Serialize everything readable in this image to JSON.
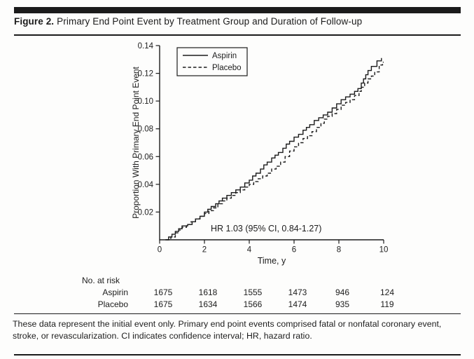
{
  "figure": {
    "label": "Figure 2.",
    "title": "Primary End Point Event by Treatment Group and Duration of Follow-up"
  },
  "footnote": "These data represent the initial event only. Primary end point events comprised fatal or nonfatal coronary event, stroke, or revascularization. CI indicates confidence interval; HR, hazard ratio.",
  "risk_table": {
    "header": "No. at risk",
    "rows": [
      {
        "label": "Aspirin",
        "values": [
          "1675",
          "1618",
          "1555",
          "1473",
          "946",
          "124"
        ]
      },
      {
        "label": "Placebo",
        "values": [
          "1675",
          "1634",
          "1566",
          "1474",
          "935",
          "119"
        ]
      }
    ]
  },
  "colors": {
    "line": "#1c1c1c",
    "text": "#1c1c1c",
    "rule": "#1b1b1b",
    "background": "#fdfdfc"
  },
  "chart_data": {
    "type": "line",
    "subtype": "step",
    "title": "",
    "xlabel": "Time, y",
    "ylabel": "Proportion With Primary End Point Event",
    "xlim": [
      0,
      10
    ],
    "ylim": [
      0,
      0.14
    ],
    "xticks": [
      0,
      2,
      4,
      6,
      8,
      10
    ],
    "yticks": [
      0.02,
      0.04,
      0.06,
      0.08,
      0.1,
      0.12,
      0.14
    ],
    "grid": false,
    "legend_position": "upper-left",
    "annotation": "HR 1.03 (95% CI, 0.84-1.27)",
    "series": [
      {
        "name": "Aspirin",
        "style": "solid",
        "points": [
          [
            0.25,
            0
          ],
          [
            0.4,
            0.002
          ],
          [
            0.55,
            0.004
          ],
          [
            0.7,
            0.006
          ],
          [
            0.85,
            0.008
          ],
          [
            1.0,
            0.01
          ],
          [
            1.25,
            0.011
          ],
          [
            1.45,
            0.013
          ],
          [
            1.6,
            0.015
          ],
          [
            1.8,
            0.017
          ],
          [
            2.0,
            0.02
          ],
          [
            2.15,
            0.022
          ],
          [
            2.3,
            0.024
          ],
          [
            2.5,
            0.026
          ],
          [
            2.65,
            0.028
          ],
          [
            2.8,
            0.03
          ],
          [
            3.0,
            0.032
          ],
          [
            3.2,
            0.034
          ],
          [
            3.4,
            0.036
          ],
          [
            3.6,
            0.038
          ],
          [
            3.8,
            0.041
          ],
          [
            4.0,
            0.043
          ],
          [
            4.15,
            0.046
          ],
          [
            4.3,
            0.048
          ],
          [
            4.5,
            0.051
          ],
          [
            4.65,
            0.054
          ],
          [
            4.8,
            0.056
          ],
          [
            5.0,
            0.059
          ],
          [
            5.15,
            0.061
          ],
          [
            5.3,
            0.063
          ],
          [
            5.5,
            0.066
          ],
          [
            5.65,
            0.069
          ],
          [
            5.8,
            0.071
          ],
          [
            6.0,
            0.074
          ],
          [
            6.2,
            0.076
          ],
          [
            6.4,
            0.079
          ],
          [
            6.55,
            0.081
          ],
          [
            6.7,
            0.083
          ],
          [
            6.9,
            0.086
          ],
          [
            7.1,
            0.088
          ],
          [
            7.3,
            0.09
          ],
          [
            7.5,
            0.092
          ],
          [
            7.7,
            0.095
          ],
          [
            7.9,
            0.098
          ],
          [
            8.1,
            0.101
          ],
          [
            8.3,
            0.103
          ],
          [
            8.5,
            0.105
          ],
          [
            8.7,
            0.107
          ],
          [
            8.85,
            0.109
          ],
          [
            9.0,
            0.113
          ],
          [
            9.1,
            0.116
          ],
          [
            9.2,
            0.119
          ],
          [
            9.3,
            0.122
          ],
          [
            9.45,
            0.125
          ],
          [
            9.7,
            0.129
          ],
          [
            9.85,
            0.129
          ],
          [
            9.9,
            0.131
          ]
        ]
      },
      {
        "name": "Placebo",
        "style": "dashed",
        "points": [
          [
            0.3,
            0
          ],
          [
            0.5,
            0.002
          ],
          [
            0.7,
            0.005
          ],
          [
            0.85,
            0.007
          ],
          [
            1.0,
            0.009
          ],
          [
            1.2,
            0.011
          ],
          [
            1.4,
            0.013
          ],
          [
            1.6,
            0.015
          ],
          [
            1.8,
            0.017
          ],
          [
            2.0,
            0.019
          ],
          [
            2.2,
            0.021
          ],
          [
            2.4,
            0.023
          ],
          [
            2.6,
            0.026
          ],
          [
            2.8,
            0.028
          ],
          [
            3.0,
            0.03
          ],
          [
            3.2,
            0.032
          ],
          [
            3.4,
            0.034
          ],
          [
            3.6,
            0.036
          ],
          [
            3.8,
            0.038
          ],
          [
            4.0,
            0.04
          ],
          [
            4.2,
            0.042
          ],
          [
            4.4,
            0.044
          ],
          [
            4.6,
            0.046
          ],
          [
            4.8,
            0.048
          ],
          [
            5.0,
            0.051
          ],
          [
            5.2,
            0.053
          ],
          [
            5.4,
            0.056
          ],
          [
            5.6,
            0.06
          ],
          [
            5.8,
            0.064
          ],
          [
            6.0,
            0.067
          ],
          [
            6.2,
            0.07
          ],
          [
            6.4,
            0.073
          ],
          [
            6.6,
            0.075
          ],
          [
            6.8,
            0.078
          ],
          [
            7.0,
            0.081
          ],
          [
            7.2,
            0.084
          ],
          [
            7.35,
            0.087
          ],
          [
            7.5,
            0.089
          ],
          [
            7.7,
            0.091
          ],
          [
            7.9,
            0.094
          ],
          [
            8.1,
            0.097
          ],
          [
            8.3,
            0.099
          ],
          [
            8.5,
            0.101
          ],
          [
            8.7,
            0.104
          ],
          [
            8.9,
            0.107
          ],
          [
            9.0,
            0.11
          ],
          [
            9.15,
            0.113
          ],
          [
            9.3,
            0.116
          ],
          [
            9.45,
            0.118
          ],
          [
            9.6,
            0.121
          ],
          [
            9.8,
            0.126
          ],
          [
            9.95,
            0.128
          ],
          [
            10.0,
            0.128
          ]
        ]
      }
    ]
  }
}
